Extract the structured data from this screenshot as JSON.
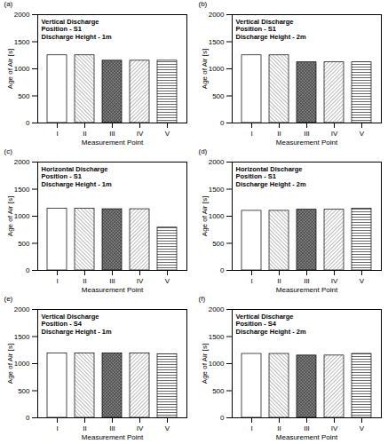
{
  "chart_data": [
    {
      "type": "bar",
      "title": "(a)",
      "annotations": [
        "Vertical Discharge",
        "Position - S1",
        "Discharge Height - 1m"
      ],
      "x_label": "Measurement Point",
      "y_label": "Age of Air [s]",
      "categories": [
        "I",
        "II",
        "III",
        "IV",
        "V"
      ],
      "values": [
        1250,
        1250,
        1150,
        1150,
        1150
      ],
      "ylim": [
        0,
        2000
      ],
      "yticks": [
        0,
        500,
        1000,
        1500,
        2000
      ]
    },
    {
      "type": "bar",
      "title": "(b)",
      "annotations": [
        "Vertical Discharge",
        "Position - S1",
        "Discharge Height - 2m"
      ],
      "x_label": "Measurement Point",
      "y_label": "Age of Air [s]",
      "categories": [
        "I",
        "II",
        "III",
        "IV",
        "V"
      ],
      "values": [
        1250,
        1250,
        1120,
        1120,
        1120
      ],
      "ylim": [
        0,
        2000
      ],
      "yticks": [
        0,
        500,
        1000,
        1500,
        2000
      ]
    },
    {
      "type": "bar",
      "title": "(c)",
      "annotations": [
        "Horizontal Discharge",
        "Position - S1",
        "Discharge Height - 1m"
      ],
      "x_label": "Measurement Point",
      "y_label": "Age of Air [s]",
      "categories": [
        "I",
        "II",
        "III",
        "IV",
        "V"
      ],
      "values": [
        1140,
        1140,
        1130,
        1130,
        790
      ],
      "ylim": [
        0,
        2000
      ],
      "yticks": [
        0,
        500,
        1000,
        1500,
        2000
      ]
    },
    {
      "type": "bar",
      "title": "(d)",
      "annotations": [
        "Horizontal Discharge",
        "Position - S1",
        "Discharge Height - 2m"
      ],
      "x_label": "Measurement Point",
      "y_label": "Age of Air [s]",
      "categories": [
        "I",
        "II",
        "III",
        "IV",
        "V"
      ],
      "values": [
        1100,
        1100,
        1120,
        1120,
        1140
      ],
      "ylim": [
        0,
        2000
      ],
      "yticks": [
        0,
        500,
        1000,
        1500,
        2000
      ]
    },
    {
      "type": "bar",
      "title": "(e)",
      "annotations": [
        "Vertical Discharge",
        "Position - S4",
        "Discharge Height - 1m"
      ],
      "x_label": "Measurement Point",
      "y_label": "Age of Air [s]",
      "categories": [
        "I",
        "II",
        "III",
        "IV",
        "V"
      ],
      "values": [
        1190,
        1190,
        1190,
        1190,
        1170
      ],
      "ylim": [
        0,
        2000
      ],
      "yticks": [
        0,
        500,
        1000,
        1500,
        2000
      ]
    },
    {
      "type": "bar",
      "title": "(f)",
      "annotations": [
        "Vertical Discharge",
        "Position - S4",
        "Discharge Height - 2m"
      ],
      "x_label": "Measurement Point",
      "y_label": "Age of Air [s]",
      "categories": [
        "I",
        "II",
        "III",
        "IV",
        "V"
      ],
      "values": [
        1180,
        1180,
        1150,
        1150,
        1180
      ],
      "ylim": [
        0,
        2000
      ],
      "yticks": [
        0,
        500,
        1000,
        1500,
        2000
      ]
    }
  ]
}
